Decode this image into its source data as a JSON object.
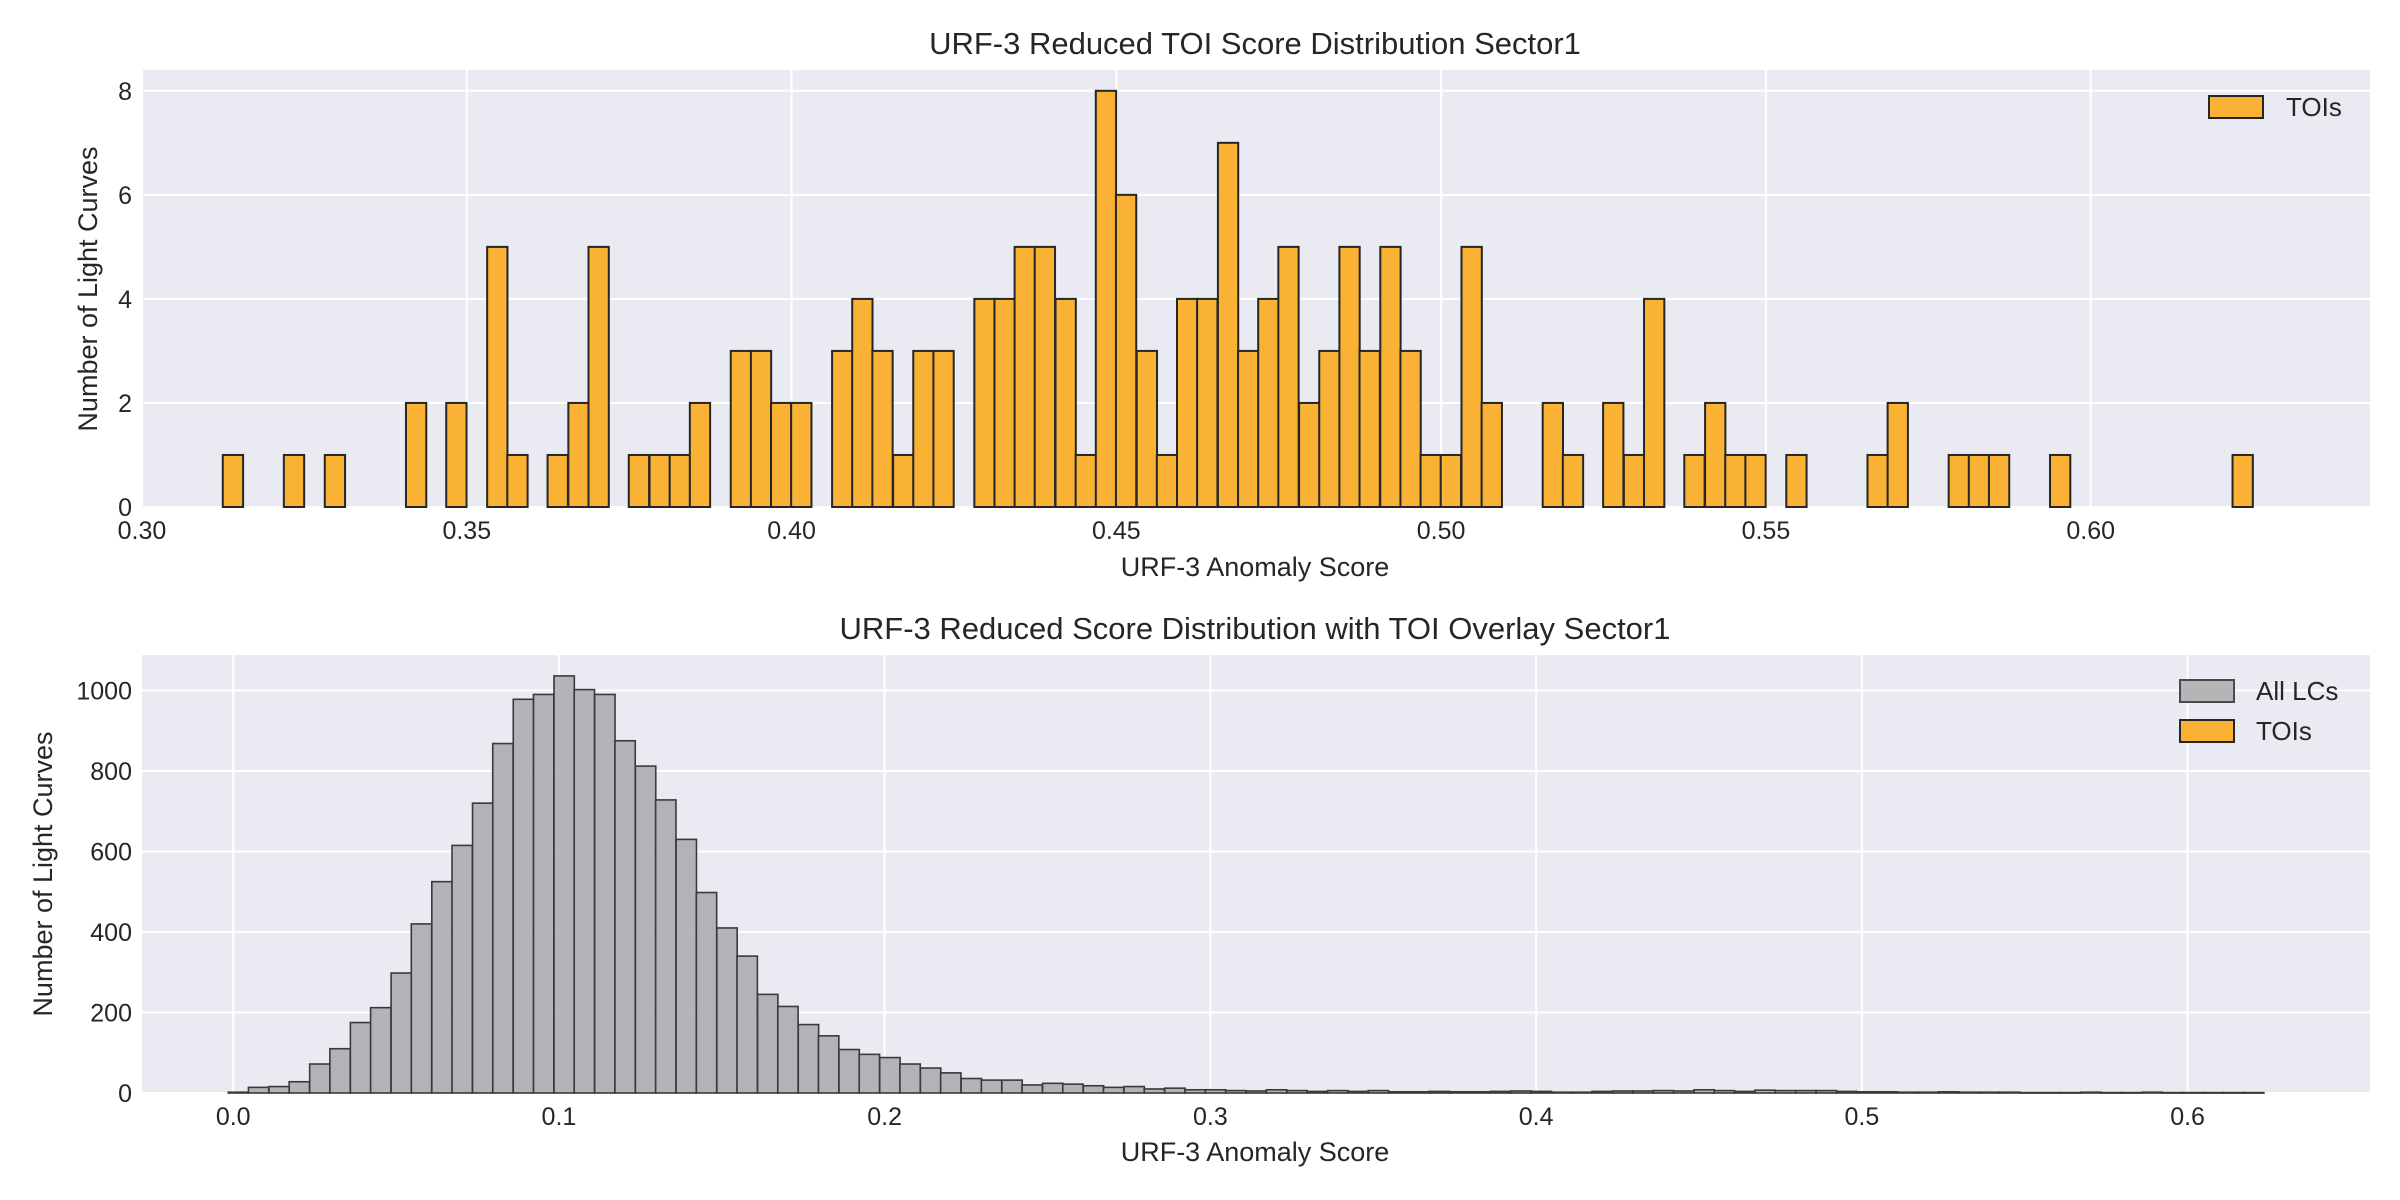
{
  "chart_data": [
    {
      "type": "bar",
      "title": "URF-3 Reduced TOI Score Distribution Sector1",
      "xlabel": "URF-3 Anomaly Score",
      "ylabel": "Number of Light Curves",
      "xlim": [
        0.3,
        0.643
      ],
      "ylim": [
        0,
        8.4
      ],
      "xticks": [
        "0.30",
        "0.35",
        "0.40",
        "0.45",
        "0.50",
        "0.55",
        "0.60"
      ],
      "yticks": [
        "0",
        "2",
        "4",
        "6",
        "8"
      ],
      "grid": true,
      "legend_position": "top-right",
      "bin_width": 0.003125,
      "series": [
        {
          "name": "TOIs",
          "color": "#f9b233",
          "bins": [
            {
              "x": 0.314,
              "count": 1
            },
            {
              "x": 0.3234,
              "count": 1
            },
            {
              "x": 0.3297,
              "count": 1
            },
            {
              "x": 0.3422,
              "count": 2
            },
            {
              "x": 0.3484,
              "count": 2
            },
            {
              "x": 0.3547,
              "count": 5
            },
            {
              "x": 0.3578,
              "count": 1
            },
            {
              "x": 0.364,
              "count": 1
            },
            {
              "x": 0.3672,
              "count": 2
            },
            {
              "x": 0.3703,
              "count": 5
            },
            {
              "x": 0.3765,
              "count": 1
            },
            {
              "x": 0.3797,
              "count": 1
            },
            {
              "x": 0.3828,
              "count": 1
            },
            {
              "x": 0.3859,
              "count": 2
            },
            {
              "x": 0.3922,
              "count": 3
            },
            {
              "x": 0.3953,
              "count": 3
            },
            {
              "x": 0.3984,
              "count": 2
            },
            {
              "x": 0.4015,
              "count": 2
            },
            {
              "x": 0.4078,
              "count": 3
            },
            {
              "x": 0.4109,
              "count": 4
            },
            {
              "x": 0.414,
              "count": 3
            },
            {
              "x": 0.4172,
              "count": 1
            },
            {
              "x": 0.4203,
              "count": 3
            },
            {
              "x": 0.4234,
              "count": 3
            },
            {
              "x": 0.4297,
              "count": 4
            },
            {
              "x": 0.4328,
              "count": 4
            },
            {
              "x": 0.4359,
              "count": 5
            },
            {
              "x": 0.439,
              "count": 5
            },
            {
              "x": 0.4422,
              "count": 4
            },
            {
              "x": 0.4453,
              "count": 1
            },
            {
              "x": 0.4484,
              "count": 8
            },
            {
              "x": 0.4515,
              "count": 6
            },
            {
              "x": 0.4547,
              "count": 3
            },
            {
              "x": 0.4578,
              "count": 1
            },
            {
              "x": 0.4609,
              "count": 4
            },
            {
              "x": 0.464,
              "count": 4
            },
            {
              "x": 0.4672,
              "count": 7
            },
            {
              "x": 0.4703,
              "count": 3
            },
            {
              "x": 0.4734,
              "count": 4
            },
            {
              "x": 0.4765,
              "count": 5
            },
            {
              "x": 0.4797,
              "count": 2
            },
            {
              "x": 0.4828,
              "count": 3
            },
            {
              "x": 0.4859,
              "count": 5
            },
            {
              "x": 0.489,
              "count": 3
            },
            {
              "x": 0.4922,
              "count": 5
            },
            {
              "x": 0.4953,
              "count": 3
            },
            {
              "x": 0.4984,
              "count": 1
            },
            {
              "x": 0.5015,
              "count": 1
            },
            {
              "x": 0.5047,
              "count": 5
            },
            {
              "x": 0.5078,
              "count": 2
            },
            {
              "x": 0.5172,
              "count": 2
            },
            {
              "x": 0.5203,
              "count": 1
            },
            {
              "x": 0.5265,
              "count": 2
            },
            {
              "x": 0.5297,
              "count": 1
            },
            {
              "x": 0.5328,
              "count": 4
            },
            {
              "x": 0.539,
              "count": 1
            },
            {
              "x": 0.5422,
              "count": 2
            },
            {
              "x": 0.5453,
              "count": 1
            },
            {
              "x": 0.5484,
              "count": 1
            },
            {
              "x": 0.5547,
              "count": 1
            },
            {
              "x": 0.5672,
              "count": 1
            },
            {
              "x": 0.5703,
              "count": 2
            },
            {
              "x": 0.5797,
              "count": 1
            },
            {
              "x": 0.5828,
              "count": 1
            },
            {
              "x": 0.5859,
              "count": 1
            },
            {
              "x": 0.5953,
              "count": 1
            },
            {
              "x": 0.6234,
              "count": 1
            }
          ]
        }
      ]
    },
    {
      "type": "bar",
      "title": "URF-3 Reduced Score Distribution with TOI Overlay Sector1",
      "xlabel": "URF-3 Anomaly Score",
      "ylabel": "Number of Light Curves",
      "xlim": [
        -0.028,
        0.656
      ],
      "ylim": [
        0,
        1088
      ],
      "xticks": [
        "0.0",
        "0.1",
        "0.2",
        "0.3",
        "0.4",
        "0.5",
        "0.6"
      ],
      "yticks": [
        "0",
        "200",
        "400",
        "600",
        "800",
        "1000"
      ],
      "grid": true,
      "legend_position": "top-right",
      "bin_width": 0.00625,
      "series": [
        {
          "name": "All LCs",
          "color": "#a9a9ad",
          "bins": [
            {
              "x": 0.0016,
              "count": 2
            },
            {
              "x": 0.0078,
              "count": 14
            },
            {
              "x": 0.0141,
              "count": 16
            },
            {
              "x": 0.0203,
              "count": 28
            },
            {
              "x": 0.0266,
              "count": 72
            },
            {
              "x": 0.0328,
              "count": 110
            },
            {
              "x": 0.0391,
              "count": 175
            },
            {
              "x": 0.0453,
              "count": 212
            },
            {
              "x": 0.0516,
              "count": 298
            },
            {
              "x": 0.0578,
              "count": 420
            },
            {
              "x": 0.0641,
              "count": 525
            },
            {
              "x": 0.0703,
              "count": 615
            },
            {
              "x": 0.0766,
              "count": 720
            },
            {
              "x": 0.0828,
              "count": 868
            },
            {
              "x": 0.0891,
              "count": 978
            },
            {
              "x": 0.0953,
              "count": 990
            },
            {
              "x": 0.1016,
              "count": 1036
            },
            {
              "x": 0.1078,
              "count": 1002
            },
            {
              "x": 0.1141,
              "count": 990
            },
            {
              "x": 0.1203,
              "count": 875
            },
            {
              "x": 0.1266,
              "count": 812
            },
            {
              "x": 0.1328,
              "count": 728
            },
            {
              "x": 0.1391,
              "count": 630
            },
            {
              "x": 0.1453,
              "count": 498
            },
            {
              "x": 0.1516,
              "count": 410
            },
            {
              "x": 0.1578,
              "count": 340
            },
            {
              "x": 0.1641,
              "count": 245
            },
            {
              "x": 0.1703,
              "count": 215
            },
            {
              "x": 0.1766,
              "count": 170
            },
            {
              "x": 0.1828,
              "count": 142
            },
            {
              "x": 0.1891,
              "count": 108
            },
            {
              "x": 0.1953,
              "count": 96
            },
            {
              "x": 0.2016,
              "count": 88
            },
            {
              "x": 0.2078,
              "count": 72
            },
            {
              "x": 0.2141,
              "count": 62
            },
            {
              "x": 0.2203,
              "count": 50
            },
            {
              "x": 0.2266,
              "count": 36
            },
            {
              "x": 0.2328,
              "count": 32
            },
            {
              "x": 0.2391,
              "count": 32
            },
            {
              "x": 0.2453,
              "count": 20
            },
            {
              "x": 0.2516,
              "count": 24
            },
            {
              "x": 0.2578,
              "count": 22
            },
            {
              "x": 0.2641,
              "count": 18
            },
            {
              "x": 0.2703,
              "count": 14
            },
            {
              "x": 0.2766,
              "count": 16
            },
            {
              "x": 0.2828,
              "count": 10
            },
            {
              "x": 0.2891,
              "count": 12
            },
            {
              "x": 0.2953,
              "count": 8
            },
            {
              "x": 0.3016,
              "count": 8
            },
            {
              "x": 0.3078,
              "count": 6
            },
            {
              "x": 0.3141,
              "count": 5
            },
            {
              "x": 0.3203,
              "count": 8
            },
            {
              "x": 0.3266,
              "count": 6
            },
            {
              "x": 0.3328,
              "count": 4
            },
            {
              "x": 0.3391,
              "count": 6
            },
            {
              "x": 0.3453,
              "count": 4
            },
            {
              "x": 0.3516,
              "count": 6
            },
            {
              "x": 0.3578,
              "count": 3
            },
            {
              "x": 0.3641,
              "count": 3
            },
            {
              "x": 0.3703,
              "count": 4
            },
            {
              "x": 0.3766,
              "count": 3
            },
            {
              "x": 0.3828,
              "count": 3
            },
            {
              "x": 0.3891,
              "count": 4
            },
            {
              "x": 0.3953,
              "count": 5
            },
            {
              "x": 0.4016,
              "count": 4
            },
            {
              "x": 0.4078,
              "count": 2
            },
            {
              "x": 0.4141,
              "count": 2
            },
            {
              "x": 0.4203,
              "count": 4
            },
            {
              "x": 0.4266,
              "count": 5
            },
            {
              "x": 0.4328,
              "count": 5
            },
            {
              "x": 0.4391,
              "count": 6
            },
            {
              "x": 0.4453,
              "count": 5
            },
            {
              "x": 0.4516,
              "count": 8
            },
            {
              "x": 0.4578,
              "count": 6
            },
            {
              "x": 0.4641,
              "count": 4
            },
            {
              "x": 0.4703,
              "count": 7
            },
            {
              "x": 0.4766,
              "count": 6
            },
            {
              "x": 0.4828,
              "count": 6
            },
            {
              "x": 0.4891,
              "count": 6
            },
            {
              "x": 0.4953,
              "count": 4
            },
            {
              "x": 0.5016,
              "count": 3
            },
            {
              "x": 0.5078,
              "count": 3
            },
            {
              "x": 0.5141,
              "count": 2
            },
            {
              "x": 0.5203,
              "count": 2
            },
            {
              "x": 0.5266,
              "count": 3
            },
            {
              "x": 0.5328,
              "count": 2
            },
            {
              "x": 0.5391,
              "count": 2
            },
            {
              "x": 0.5453,
              "count": 2
            },
            {
              "x": 0.5516,
              "count": 1
            },
            {
              "x": 0.5578,
              "count": 1
            },
            {
              "x": 0.5641,
              "count": 1
            },
            {
              "x": 0.5703,
              "count": 2
            },
            {
              "x": 0.5766,
              "count": 1
            },
            {
              "x": 0.5828,
              "count": 1
            },
            {
              "x": 0.5891,
              "count": 2
            },
            {
              "x": 0.5953,
              "count": 1
            },
            {
              "x": 0.6016,
              "count": 1
            },
            {
              "x": 0.6078,
              "count": 1
            },
            {
              "x": 0.6141,
              "count": 1
            },
            {
              "x": 0.6203,
              "count": 1
            }
          ]
        },
        {
          "name": "TOIs",
          "color": "#f9b233",
          "overlay_of": "TOI counts from upper panel (counts 1-8, barely visible at this scale)"
        }
      ]
    }
  ]
}
